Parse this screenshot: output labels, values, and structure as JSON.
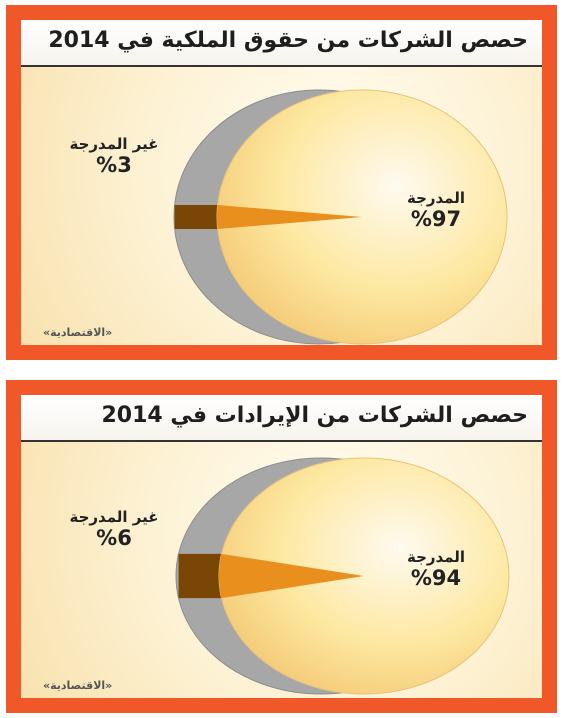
{
  "chart_data": [
    {
      "type": "pie",
      "title": "حصص الشركات من حقوق الملكية في 2014",
      "source": "«الاقتصادية»",
      "slices": [
        {
          "label": "المدرجة",
          "percent_text": "%97",
          "value": 97,
          "color": "#fde8a0"
        },
        {
          "label": "غير المدرجة",
          "percent_text": "%3",
          "value": 3,
          "color": "#e98f1e"
        }
      ],
      "side_color": "#a7a7a7",
      "side_accent_color": "#7a4605"
    },
    {
      "type": "pie",
      "title": "حصص الشركات من الإيرادات في 2014",
      "source": "«الاقتصادية»",
      "slices": [
        {
          "label": "المدرجة",
          "percent_text": "%94",
          "value": 94,
          "color": "#fde8a0"
        },
        {
          "label": "غير المدرجة",
          "percent_text": "%6",
          "value": 6,
          "color": "#e98f1e"
        }
      ],
      "side_color": "#a7a7a7",
      "side_accent_color": "#7a4605"
    }
  ],
  "colors": {
    "frame": "#f0582a",
    "title_text": "#1e1e1e"
  }
}
